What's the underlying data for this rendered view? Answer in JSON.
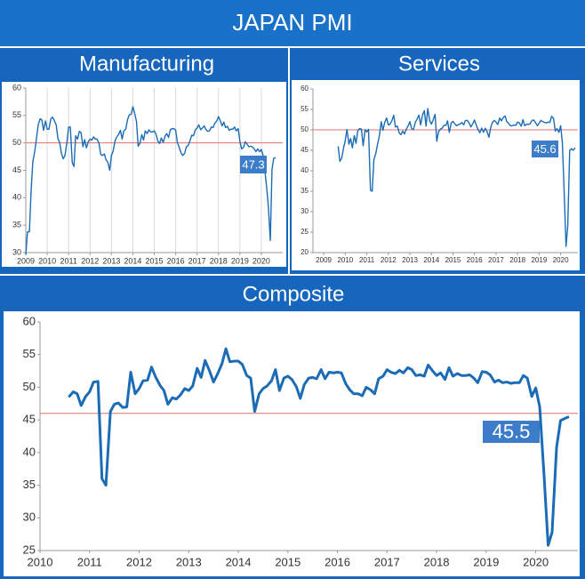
{
  "title": "JAPAN PMI",
  "chart_data": [
    {
      "type": "line",
      "title": "Manufacturing",
      "color": "#1b6cb5",
      "grid": true,
      "reference_line": 50,
      "reference_color": "#e07070",
      "xlim": [
        2009,
        2021
      ],
      "xticks": [
        2009,
        2010,
        2011,
        2012,
        2013,
        2014,
        2015,
        2016,
        2017,
        2018,
        2019,
        2020
      ],
      "ylim": [
        30,
        60
      ],
      "yticks": [
        30,
        35,
        40,
        45,
        50,
        55,
        60
      ],
      "x": [
        2009.0,
        2009.08,
        2009.17,
        2009.25,
        2009.33,
        2009.42,
        2009.5,
        2009.58,
        2009.67,
        2009.75,
        2009.83,
        2009.92,
        2010.0,
        2010.08,
        2010.17,
        2010.25,
        2010.33,
        2010.42,
        2010.5,
        2010.58,
        2010.67,
        2010.75,
        2010.83,
        2010.92,
        2011.0,
        2011.08,
        2011.17,
        2011.25,
        2011.33,
        2011.42,
        2011.5,
        2011.58,
        2011.67,
        2011.75,
        2011.83,
        2011.92,
        2012.0,
        2012.08,
        2012.17,
        2012.25,
        2012.33,
        2012.42,
        2012.5,
        2012.58,
        2012.67,
        2012.75,
        2012.83,
        2012.92,
        2013.0,
        2013.08,
        2013.17,
        2013.25,
        2013.33,
        2013.42,
        2013.5,
        2013.58,
        2013.67,
        2013.75,
        2013.83,
        2013.92,
        2014.0,
        2014.08,
        2014.17,
        2014.25,
        2014.33,
        2014.42,
        2014.5,
        2014.58,
        2014.67,
        2014.75,
        2014.83,
        2014.92,
        2015.0,
        2015.08,
        2015.17,
        2015.25,
        2015.33,
        2015.42,
        2015.5,
        2015.58,
        2015.67,
        2015.75,
        2015.83,
        2015.92,
        2016.0,
        2016.08,
        2016.17,
        2016.25,
        2016.33,
        2016.42,
        2016.5,
        2016.58,
        2016.67,
        2016.75,
        2016.83,
        2016.92,
        2017.0,
        2017.08,
        2017.17,
        2017.25,
        2017.33,
        2017.42,
        2017.5,
        2017.58,
        2017.67,
        2017.75,
        2017.83,
        2017.92,
        2018.0,
        2018.08,
        2018.17,
        2018.25,
        2018.33,
        2018.42,
        2018.5,
        2018.58,
        2018.67,
        2018.75,
        2018.83,
        2018.92,
        2019.0,
        2019.08,
        2019.17,
        2019.25,
        2019.33,
        2019.42,
        2019.5,
        2019.58,
        2019.67,
        2019.75,
        2019.83,
        2019.92,
        2020.0,
        2020.08,
        2020.17,
        2020.25,
        2020.33,
        2020.42,
        2020.5,
        2020.58,
        2020.67
      ],
      "values": [
        29.6,
        33.8,
        33.8,
        41.4,
        46.6,
        48.5,
        50.8,
        53.3,
        54.4,
        54.2,
        52.3,
        54.0,
        52.5,
        52.5,
        54.4,
        54.7,
        54.1,
        53.3,
        50.8,
        50.1,
        48.0,
        47.1,
        47.7,
        50.1,
        52.9,
        52.9,
        46.4,
        45.7,
        51.3,
        50.7,
        52.1,
        51.9,
        49.3,
        50.6,
        49.1,
        50.2,
        50.7,
        50.5,
        51.1,
        50.7,
        50.7,
        49.9,
        47.9,
        47.7,
        48.0,
        46.9,
        46.5,
        45.0,
        47.7,
        48.5,
        50.4,
        51.1,
        51.5,
        52.3,
        50.7,
        52.2,
        52.5,
        54.2,
        55.1,
        55.2,
        56.6,
        55.5,
        53.9,
        49.4,
        49.9,
        51.5,
        50.5,
        52.2,
        51.7,
        52.4,
        52.0,
        52.0,
        52.2,
        51.6,
        50.3,
        49.9,
        50.9,
        50.1,
        51.2,
        51.7,
        51.0,
        52.4,
        52.6,
        52.6,
        52.3,
        50.1,
        49.1,
        48.2,
        47.7,
        48.1,
        49.3,
        49.5,
        50.4,
        51.4,
        51.3,
        52.4,
        52.7,
        53.3,
        52.4,
        52.7,
        53.1,
        52.4,
        52.1,
        52.2,
        52.9,
        52.8,
        53.6,
        54.0,
        54.8,
        54.1,
        53.1,
        53.8,
        52.8,
        53.0,
        52.3,
        52.5,
        52.5,
        52.9,
        52.2,
        52.6,
        50.3,
        48.9,
        49.2,
        50.2,
        49.8,
        49.3,
        49.4,
        49.3,
        48.9,
        48.4,
        48.9,
        48.4,
        48.8,
        47.8,
        44.8,
        41.9,
        38.4,
        32.2,
        45.2,
        47.2,
        47.3
      ]
    },
    {
      "type": "line",
      "title": "Services",
      "color": "#1b6cb5",
      "grid": false,
      "reference_line": 50,
      "reference_color": "#e07070",
      "xlim": [
        2008.5,
        2020.8
      ],
      "xticks": [
        2009,
        2010,
        2011,
        2012,
        2013,
        2014,
        2015,
        2016,
        2017,
        2018,
        2019,
        2020
      ],
      "ylim": [
        20,
        60
      ],
      "yticks": [
        20,
        25,
        30,
        35,
        40,
        45,
        50,
        55,
        60
      ],
      "x": [
        2009.67,
        2009.75,
        2009.83,
        2009.92,
        2010.0,
        2010.08,
        2010.17,
        2010.25,
        2010.33,
        2010.42,
        2010.5,
        2010.58,
        2010.67,
        2010.75,
        2010.83,
        2010.92,
        2011.0,
        2011.08,
        2011.17,
        2011.25,
        2011.33,
        2011.42,
        2011.5,
        2011.58,
        2011.67,
        2011.75,
        2011.83,
        2011.92,
        2012.0,
        2012.08,
        2012.17,
        2012.25,
        2012.33,
        2012.42,
        2012.5,
        2012.58,
        2012.67,
        2012.75,
        2012.83,
        2012.92,
        2013.0,
        2013.08,
        2013.17,
        2013.25,
        2013.33,
        2013.42,
        2013.5,
        2013.58,
        2013.67,
        2013.75,
        2013.83,
        2013.92,
        2014.0,
        2014.08,
        2014.17,
        2014.25,
        2014.33,
        2014.42,
        2014.5,
        2014.58,
        2014.67,
        2014.75,
        2014.83,
        2014.92,
        2015.0,
        2015.08,
        2015.17,
        2015.25,
        2015.33,
        2015.42,
        2015.5,
        2015.58,
        2015.67,
        2015.75,
        2015.83,
        2015.92,
        2016.0,
        2016.08,
        2016.17,
        2016.25,
        2016.33,
        2016.42,
        2016.5,
        2016.58,
        2016.67,
        2016.75,
        2016.83,
        2016.92,
        2017.0,
        2017.08,
        2017.17,
        2017.25,
        2017.33,
        2017.42,
        2017.5,
        2017.58,
        2017.67,
        2017.75,
        2017.83,
        2017.92,
        2018.0,
        2018.08,
        2018.17,
        2018.25,
        2018.33,
        2018.42,
        2018.5,
        2018.58,
        2018.67,
        2018.75,
        2018.83,
        2018.92,
        2019.0,
        2019.08,
        2019.17,
        2019.25,
        2019.33,
        2019.42,
        2019.5,
        2019.58,
        2019.67,
        2019.75,
        2019.83,
        2019.92,
        2020.0,
        2020.08,
        2020.17,
        2020.25,
        2020.33,
        2020.42,
        2020.5,
        2020.58,
        2020.67
      ],
      "values": [
        46.0,
        42.3,
        43.0,
        45.5,
        47.4,
        50.1,
        46.5,
        47.9,
        45.6,
        48.6,
        46.7,
        49.8,
        50.3,
        50.2,
        46.1,
        50.0,
        49.5,
        50.1,
        35.3,
        35.0,
        42.7,
        44.3,
        46.5,
        48.4,
        52.0,
        49.9,
        51.8,
        52.9,
        51.2,
        51.4,
        52.3,
        53.6,
        50.7,
        50.9,
        49.3,
        48.8,
        49.7,
        49.0,
        50.1,
        51.0,
        52.0,
        50.3,
        50.1,
        51.8,
        52.6,
        53.6,
        51.2,
        53.5,
        54.7,
        50.9,
        55.2,
        52.2,
        51.4,
        52.4,
        53.8,
        47.2,
        49.5,
        50.2,
        50.4,
        51.1,
        51.1,
        52.2,
        49.4,
        51.7,
        52.1,
        51.5,
        51.0,
        51.3,
        51.4,
        51.8,
        51.2,
        52.3,
        52.3,
        51.7,
        50.7,
        51.5,
        52.4,
        51.2,
        50.0,
        49.3,
        50.4,
        49.4,
        50.4,
        49.6,
        48.2,
        50.5,
        51.8,
        52.3,
        51.9,
        51.3,
        52.9,
        52.2,
        53.0,
        53.4,
        52.0,
        51.6,
        51.0,
        51.0,
        51.2,
        51.1,
        51.9,
        51.7,
        50.9,
        52.5,
        51.0,
        51.4,
        51.3,
        51.5,
        52.3,
        52.4,
        51.8,
        51.0,
        51.6,
        52.3,
        52.0,
        51.8,
        51.7,
        51.9,
        51.8,
        53.3,
        52.8,
        49.7,
        50.3,
        49.4,
        51.0,
        46.8,
        33.8,
        21.5,
        26.5,
        45.0,
        45.4,
        45.0,
        45.6
      ]
    },
    {
      "type": "line",
      "title": "Composite",
      "color": "#1b6cb5",
      "grid": false,
      "reference_line": 46,
      "reference_color": "#e07070",
      "xlim": [
        2010,
        2020.85
      ],
      "xticks": [
        2010,
        2011,
        2012,
        2013,
        2014,
        2015,
        2016,
        2017,
        2018,
        2019,
        2020
      ],
      "ylim": [
        25,
        60
      ],
      "yticks": [
        25,
        30,
        35,
        40,
        45,
        50,
        55,
        60
      ],
      "x": [
        2010.58,
        2010.67,
        2010.75,
        2010.83,
        2010.92,
        2011.0,
        2011.08,
        2011.17,
        2011.25,
        2011.33,
        2011.42,
        2011.5,
        2011.58,
        2011.67,
        2011.75,
        2011.83,
        2011.92,
        2012.0,
        2012.08,
        2012.17,
        2012.25,
        2012.33,
        2012.42,
        2012.5,
        2012.58,
        2012.67,
        2012.75,
        2012.83,
        2012.92,
        2013.0,
        2013.08,
        2013.17,
        2013.25,
        2013.33,
        2013.42,
        2013.5,
        2013.58,
        2013.67,
        2013.75,
        2013.83,
        2013.92,
        2014.0,
        2014.08,
        2014.17,
        2014.25,
        2014.33,
        2014.42,
        2014.5,
        2014.58,
        2014.67,
        2014.75,
        2014.83,
        2014.92,
        2015.0,
        2015.08,
        2015.17,
        2015.25,
        2015.33,
        2015.42,
        2015.5,
        2015.58,
        2015.67,
        2015.75,
        2015.83,
        2015.92,
        2016.0,
        2016.08,
        2016.17,
        2016.25,
        2016.33,
        2016.42,
        2016.5,
        2016.58,
        2016.67,
        2016.75,
        2016.83,
        2016.92,
        2017.0,
        2017.08,
        2017.17,
        2017.25,
        2017.33,
        2017.42,
        2017.5,
        2017.58,
        2017.67,
        2017.75,
        2017.83,
        2017.92,
        2018.0,
        2018.08,
        2018.17,
        2018.25,
        2018.33,
        2018.42,
        2018.5,
        2018.58,
        2018.67,
        2018.75,
        2018.83,
        2018.92,
        2019.0,
        2019.08,
        2019.17,
        2019.25,
        2019.33,
        2019.42,
        2019.5,
        2019.58,
        2019.67,
        2019.75,
        2019.83,
        2019.92,
        2020.0,
        2020.08,
        2020.17,
        2020.25,
        2020.33,
        2020.42,
        2020.5,
        2020.58,
        2020.67
      ],
      "values": [
        48.5,
        49.3,
        49.0,
        47.2,
        48.6,
        49.3,
        50.8,
        50.9,
        36.0,
        35.0,
        46.3,
        47.4,
        47.6,
        46.9,
        47.0,
        52.3,
        49.0,
        49.8,
        51.0,
        51.1,
        53.1,
        51.6,
        50.3,
        49.5,
        47.4,
        48.4,
        48.2,
        48.8,
        49.8,
        49.5,
        50.2,
        52.9,
        51.5,
        54.1,
        52.5,
        50.8,
        52.0,
        53.6,
        55.9,
        53.9,
        54.0,
        54.0,
        53.5,
        51.8,
        51.4,
        46.3,
        49.0,
        49.8,
        50.2,
        51.0,
        52.7,
        49.5,
        51.4,
        51.7,
        51.2,
        50.1,
        48.3,
        50.4,
        51.4,
        51.5,
        51.3,
        52.7,
        51.3,
        52.3,
        52.2,
        52.3,
        52.2,
        50.5,
        49.6,
        49.0,
        49.0,
        48.7,
        50.0,
        49.6,
        49.0,
        51.3,
        51.7,
        52.7,
        52.3,
        52.1,
        52.6,
        52.2,
        53.0,
        52.7,
        51.8,
        51.9,
        51.7,
        53.4,
        52.5,
        51.8,
        52.2,
        51.2,
        53.0,
        51.7,
        52.1,
        51.8,
        51.8,
        51.9,
        51.4,
        50.7,
        52.4,
        52.3,
        51.9,
        50.8,
        51.1,
        50.7,
        50.8,
        50.6,
        50.7,
        50.7,
        51.8,
        51.4,
        48.6,
        49.9,
        47.0,
        36.2,
        25.8,
        27.8,
        40.8,
        44.9,
        45.2,
        45.5
      ]
    }
  ]
}
